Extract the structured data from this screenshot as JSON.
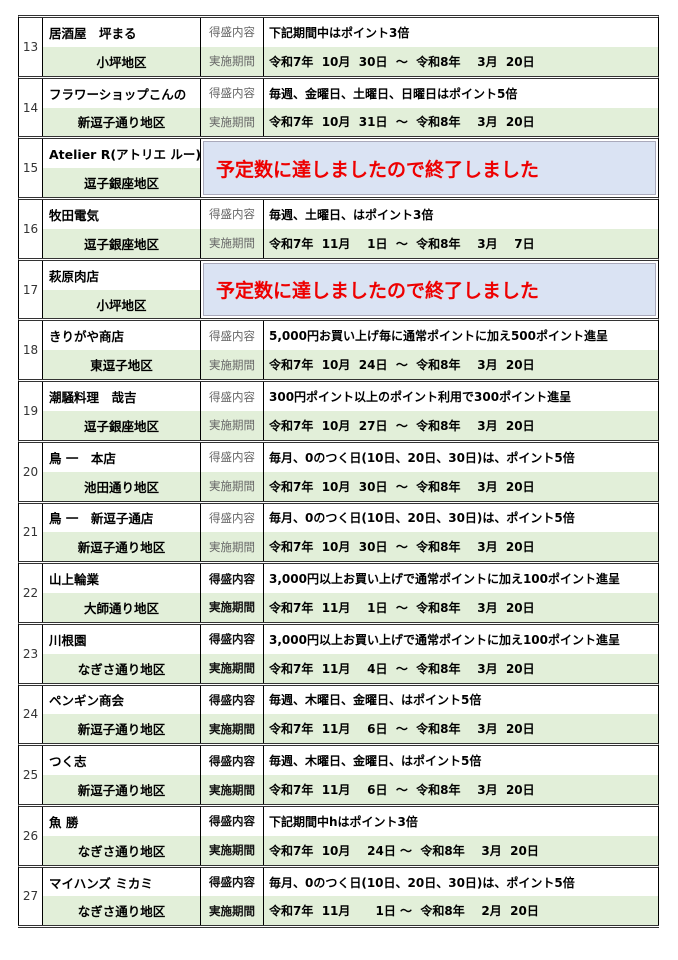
{
  "labels": {
    "content": "得盛内容",
    "period": "実施期間"
  },
  "ended_text": "予定数に達しましたので終了しました",
  "colors": {
    "period_row_bg": "#e2efd9",
    "ended_bg": "#dae3f3",
    "ended_text": "#e00000"
  },
  "entries": [
    {
      "no": "13",
      "name": "居酒屋　坪まる",
      "area": "小坪地区",
      "content": "下記期間中はポイント3倍",
      "period": "令和7年  10月  30日  ～  令和8年    3月  20日"
    },
    {
      "no": "14",
      "name": "フラワーショップこんの",
      "area": "新逗子通り地区",
      "content": "毎週、金曜日、土曜日、日曜日はポイント5倍",
      "period": "令和7年  10月  31日  ～  令和8年    3月  20日"
    },
    {
      "no": "15",
      "name": "Atelier R(アトリエ ルー)",
      "area": "逗子銀座地区",
      "ended": true
    },
    {
      "no": "16",
      "name": "牧田電気",
      "area": "逗子銀座地区",
      "content": "毎週、土曜日、はポイント3倍",
      "period": "令和7年  11月    1日  ～  令和8年    3月    7日"
    },
    {
      "no": "17",
      "name": "萩原肉店",
      "area": "小坪地区",
      "ended": true
    },
    {
      "no": "18",
      "name": "きりがや商店",
      "area": "東逗子地区",
      "content": "5,000円お買い上げ毎に通常ポイントに加え500ポイント進呈",
      "period": "令和7年  10月  24日  ～  令和8年    3月  20日"
    },
    {
      "no": "19",
      "name": "潮騒料理　哉吉",
      "area": "逗子銀座地区",
      "content": "300円ポイント以上のポイント利用で300ポイント進呈",
      "period": "令和7年  10月  27日  ～  令和8年    3月  20日"
    },
    {
      "no": "20",
      "name": "鳥 一　本店",
      "area": "池田通り地区",
      "content": "毎月、0のつく日(10日、20日、30日)は、ポイント5倍",
      "period": "令和7年  10月  30日  ～  令和8年    3月  20日"
    },
    {
      "no": "21",
      "name": "鳥 一　新逗子通店",
      "area": "新逗子通り地区",
      "content": "毎月、0のつく日(10日、20日、30日)は、ポイント5倍",
      "period": "令和7年  10月  30日  ～  令和8年    3月  20日"
    },
    {
      "no": "22",
      "name": "山上輪業",
      "area": "大師通り地区",
      "content": "3,000円以上お買い上げで通常ポイントに加え100ポイント進呈",
      "period": "令和7年  11月    1日  ～  令和8年    3月  20日"
    },
    {
      "no": "23",
      "name": "川根園",
      "area": "なぎさ通り地区",
      "content": "3,000円以上お買い上げで通常ポイントに加え100ポイント進呈",
      "period": "令和7年  11月    4日  ～  令和8年    3月  20日"
    },
    {
      "no": "24",
      "name": "ペンギン商会",
      "area": "新逗子通り地区",
      "content": "毎週、木曜日、金曜日、はポイント5倍",
      "period": "令和7年  11月    6日  ～  令和8年    3月  20日"
    },
    {
      "no": "25",
      "name": "つく志",
      "area": "新逗子通り地区",
      "content": "毎週、木曜日、金曜日、はポイント5倍",
      "period": "令和7年  11月    6日  ～  令和8年    3月  20日"
    },
    {
      "no": "26",
      "name": "魚 勝",
      "area": "なぎさ通り地区",
      "content": "下記期間中hはポイント3倍",
      "period": "令和7年  10月    24日 ～  令和8年    3月  20日"
    },
    {
      "no": "27",
      "name": "マイハンズ ミカミ",
      "area": "なぎさ通り地区",
      "content": "毎月、0のつく日(10日、20日、30日)は、ポイント5倍",
      "period": "令和7年  11月      1日 ～  令和8年    2月  20日"
    }
  ]
}
